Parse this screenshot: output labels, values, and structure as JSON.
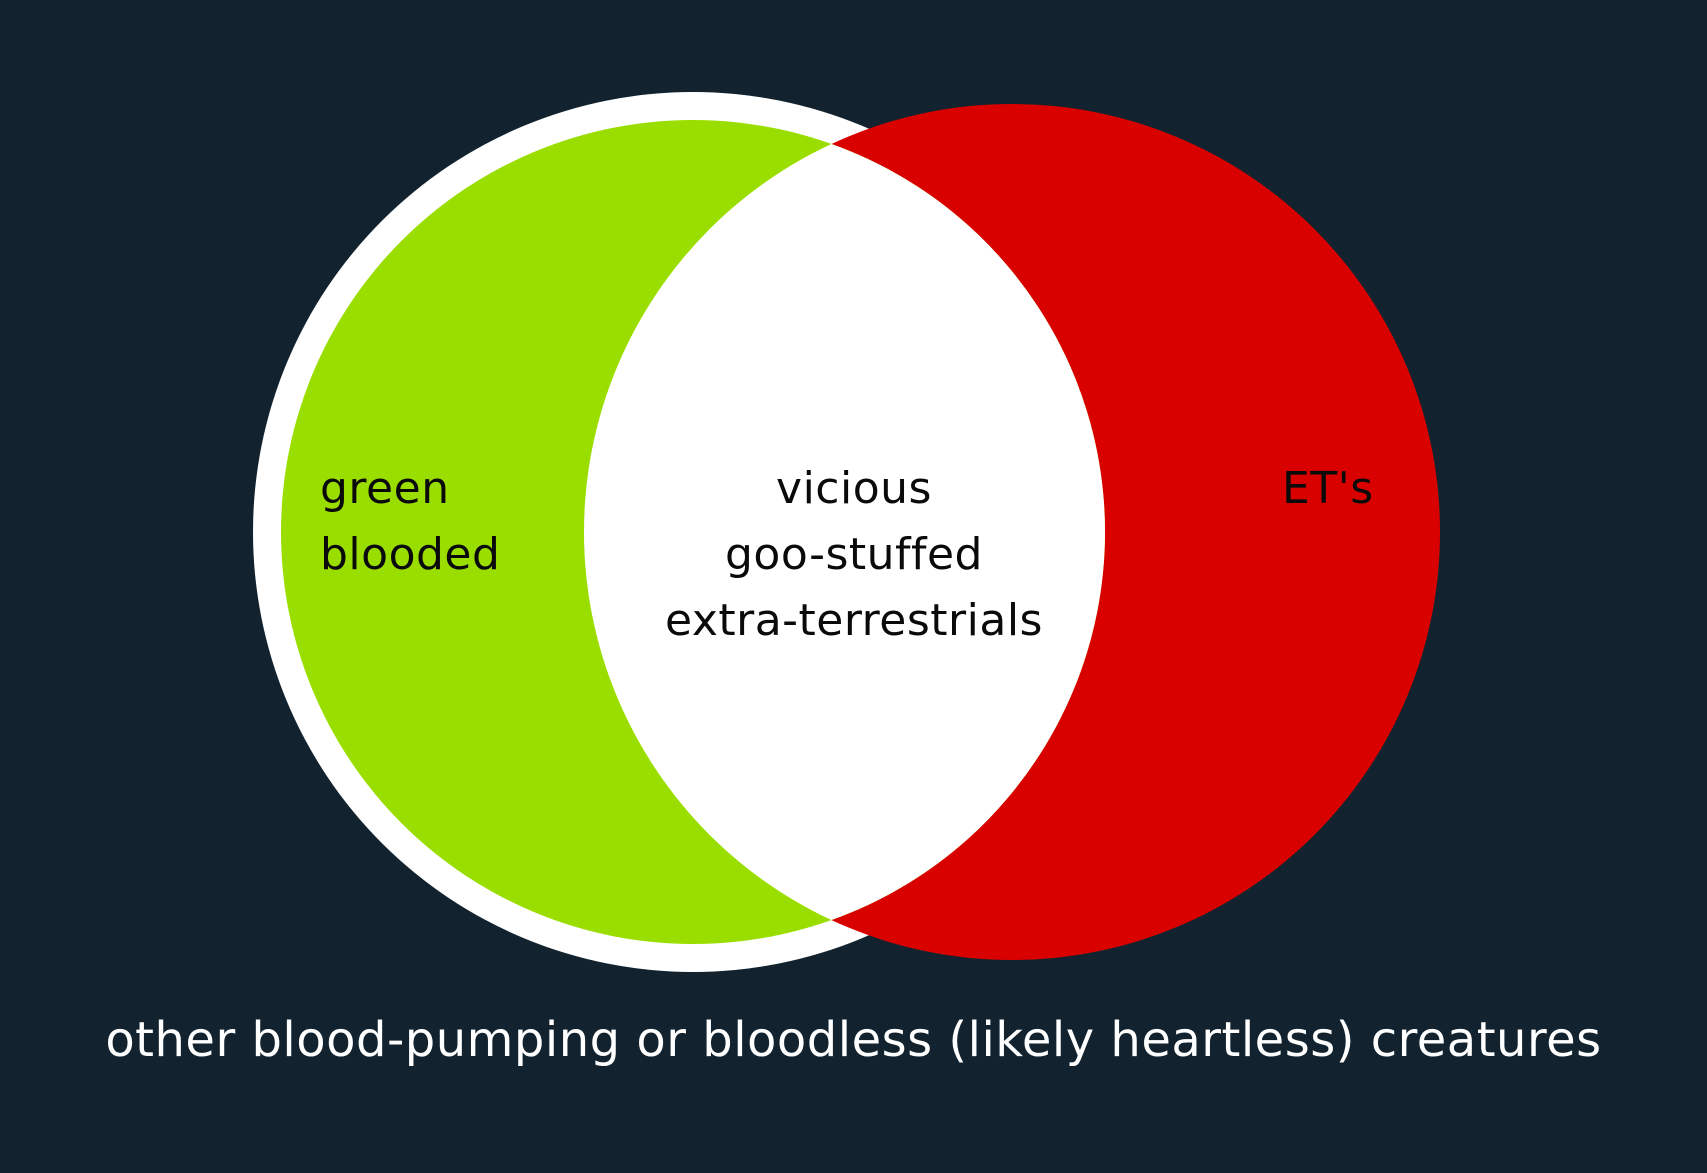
{
  "diagram": {
    "type": "venn",
    "colors": {
      "background": "#12232f",
      "left_set": "#9ade00",
      "right_set": "#d90000",
      "intersection": "#ffffff",
      "outline": "#ffffff"
    },
    "sets": {
      "left": {
        "label": "green\nblooded"
      },
      "right": {
        "label": "ET's"
      },
      "intersection": {
        "label": "vicious\ngoo-stuffed\nextra-terrestrials"
      }
    },
    "universe_label": "other blood-pumping or bloodless (likely heartless) creatures"
  }
}
